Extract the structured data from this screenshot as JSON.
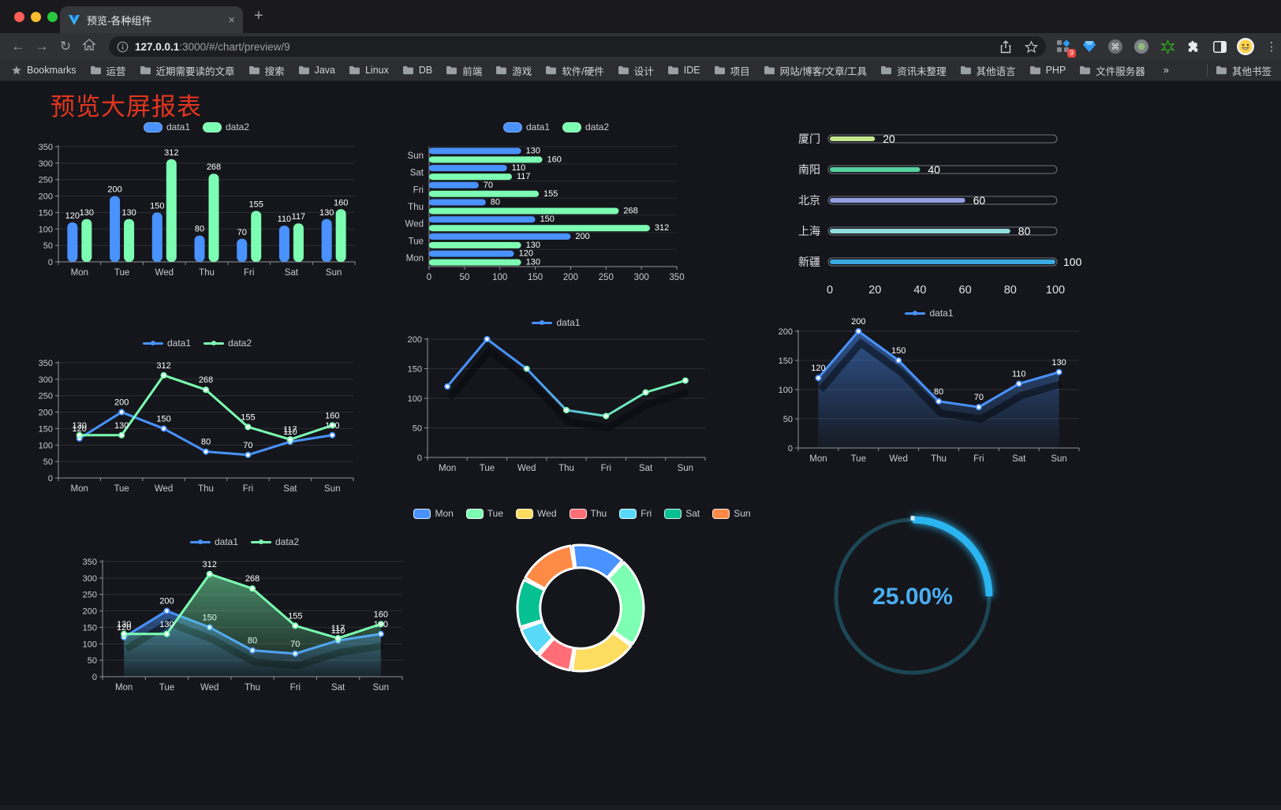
{
  "browser": {
    "tab_title": "预览-各种组件",
    "close_glyph": "×",
    "newtab_glyph": "+",
    "url_host": "127.0.0.1",
    "url_rest": ":3000/#/chart/preview/9",
    "extension_badge": "9",
    "bookmarks_root": "Bookmarks",
    "bookmarks": [
      "运营",
      "近期需要读的文章",
      "搜索",
      "Java",
      "Linux",
      "DB",
      "前端",
      "游戏",
      "软件/硬件",
      "设计",
      "IDE",
      "项目",
      "网站/博客/文章/工具",
      "资讯未整理",
      "其他语言",
      "PHP",
      "文件服务器"
    ],
    "bookmarks_overflow": "»",
    "other_bookmarks": "其他书签"
  },
  "page": {
    "title": "预览大屏报表",
    "title_color": "#e5351f"
  },
  "theme": {
    "background": "#14161b",
    "axis_label": "#c9cbd4",
    "axis_line": "#8f949e",
    "grid_line": "#2c2f36",
    "band_line": "#262a30",
    "value_label": "#ffffff",
    "legend_text": "#ccced6"
  },
  "chart_data": [
    {
      "id": "bar-vertical",
      "type": "bar",
      "categories": [
        "Mon",
        "Tue",
        "Wed",
        "Thu",
        "Fri",
        "Sat",
        "Sun"
      ],
      "series": [
        {
          "name": "data1",
          "color": "#4992ff",
          "values": [
            120,
            200,
            150,
            80,
            70,
            110,
            130
          ]
        },
        {
          "name": "data2",
          "color": "#7cffb2",
          "values": [
            130,
            130,
            312,
            268,
            155,
            117,
            160
          ]
        }
      ],
      "ylim": [
        0,
        350
      ],
      "ytick_step": 50,
      "legend_position": "top",
      "grid": true
    },
    {
      "id": "bar-horizontal",
      "type": "bar-horizontal",
      "categories_top_to_bottom": [
        "Sun",
        "Sat",
        "Fri",
        "Thu",
        "Wed",
        "Tue",
        "Mon"
      ],
      "series": [
        {
          "name": "data1",
          "color": "#4992ff",
          "values_top_to_bottom": [
            130,
            110,
            70,
            80,
            150,
            200,
            120
          ]
        },
        {
          "name": "data2",
          "color": "#7cffb2",
          "values_top_to_bottom": [
            160,
            117,
            155,
            268,
            312,
            130,
            130
          ]
        }
      ],
      "xlim": [
        0,
        350
      ],
      "xtick_step": 50,
      "legend_position": "top"
    },
    {
      "id": "capsule-progress",
      "type": "capsule-bar",
      "rows": [
        {
          "label": "厦门",
          "value": 20,
          "color": "#c4e48c"
        },
        {
          "label": "南阳",
          "value": 40,
          "color": "#57d0a0"
        },
        {
          "label": "北京",
          "value": 60,
          "color": "#959fe3"
        },
        {
          "label": "上海",
          "value": 80,
          "color": "#92dbde"
        },
        {
          "label": "新疆",
          "value": 100,
          "color": "#3ba8e0"
        }
      ],
      "xlim": [
        0,
        100
      ],
      "xticks": [
        0,
        20,
        40,
        60,
        80,
        100
      ]
    },
    {
      "id": "line-two-series",
      "type": "line",
      "categories": [
        "Mon",
        "Tue",
        "Wed",
        "Thu",
        "Fri",
        "Sat",
        "Sun"
      ],
      "series": [
        {
          "name": "data1",
          "color": "#4992ff",
          "values": [
            120,
            200,
            150,
            80,
            70,
            110,
            130
          ],
          "labels": true
        },
        {
          "name": "data2",
          "color": "#7cffb2",
          "values": [
            130,
            130,
            312,
            268,
            155,
            117,
            160
          ],
          "labels": true
        }
      ],
      "ylim": [
        0,
        350
      ],
      "ytick_step": 50,
      "legend_position": "top"
    },
    {
      "id": "line-gradient",
      "type": "line",
      "categories": [
        "Mon",
        "Tue",
        "Wed",
        "Thu",
        "Fri",
        "Sat",
        "Sun"
      ],
      "series": [
        {
          "name": "data1",
          "gradient": [
            "#4992ff",
            "#4992ff",
            "#68dfc0",
            "#7cffb2"
          ],
          "color": "#4992ff",
          "values": [
            120,
            200,
            150,
            80,
            70,
            110,
            130
          ],
          "labels": false,
          "shadow": true
        }
      ],
      "ylim": [
        0,
        200
      ],
      "ytick_step": 50,
      "legend_position": "top"
    },
    {
      "id": "area-single",
      "type": "area",
      "categories": [
        "Mon",
        "Tue",
        "Wed",
        "Thu",
        "Fri",
        "Sat",
        "Sun"
      ],
      "series": [
        {
          "name": "data1",
          "color": "#4992ff",
          "values": [
            120,
            200,
            150,
            80,
            70,
            110,
            130
          ],
          "area": true,
          "labels": true,
          "shadow": true
        }
      ],
      "ylim": [
        0,
        200
      ],
      "ytick_step": 50,
      "legend_position": "top"
    },
    {
      "id": "area-two-series",
      "type": "area",
      "categories": [
        "Mon",
        "Tue",
        "Wed",
        "Thu",
        "Fri",
        "Sat",
        "Sun"
      ],
      "series": [
        {
          "name": "data1",
          "color": "#4992ff",
          "values": [
            120,
            200,
            150,
            80,
            70,
            110,
            130
          ],
          "area": true,
          "labels": true,
          "shadow": true
        },
        {
          "name": "data2",
          "color": "#7cffb2",
          "values": [
            130,
            130,
            312,
            268,
            155,
            117,
            160
          ],
          "area": true,
          "labels": true
        }
      ],
      "ylim": [
        0,
        350
      ],
      "ytick_step": 50,
      "legend_position": "top"
    },
    {
      "id": "donut",
      "type": "pie",
      "inner_radius_ratio": 0.64,
      "legend_position": "top",
      "items": [
        {
          "label": "Mon",
          "value": 120,
          "color": "#4992ff"
        },
        {
          "label": "Tue",
          "value": 200,
          "color": "#7cffb2"
        },
        {
          "label": "Wed",
          "value": 150,
          "color": "#fddd60"
        },
        {
          "label": "Thu",
          "value": 80,
          "color": "#ff6e76"
        },
        {
          "label": "Fri",
          "value": 70,
          "color": "#58d9f9"
        },
        {
          "label": "Sat",
          "value": 110,
          "color": "#05c091"
        },
        {
          "label": "Sun",
          "value": 130,
          "color": "#ff8a45"
        }
      ]
    },
    {
      "id": "gauge",
      "type": "gauge",
      "value_percent": 25,
      "label": "25.00%",
      "progress_color": "#2ab5f0",
      "track_color": "#1c4653",
      "text_color": "#4aaef2"
    }
  ]
}
